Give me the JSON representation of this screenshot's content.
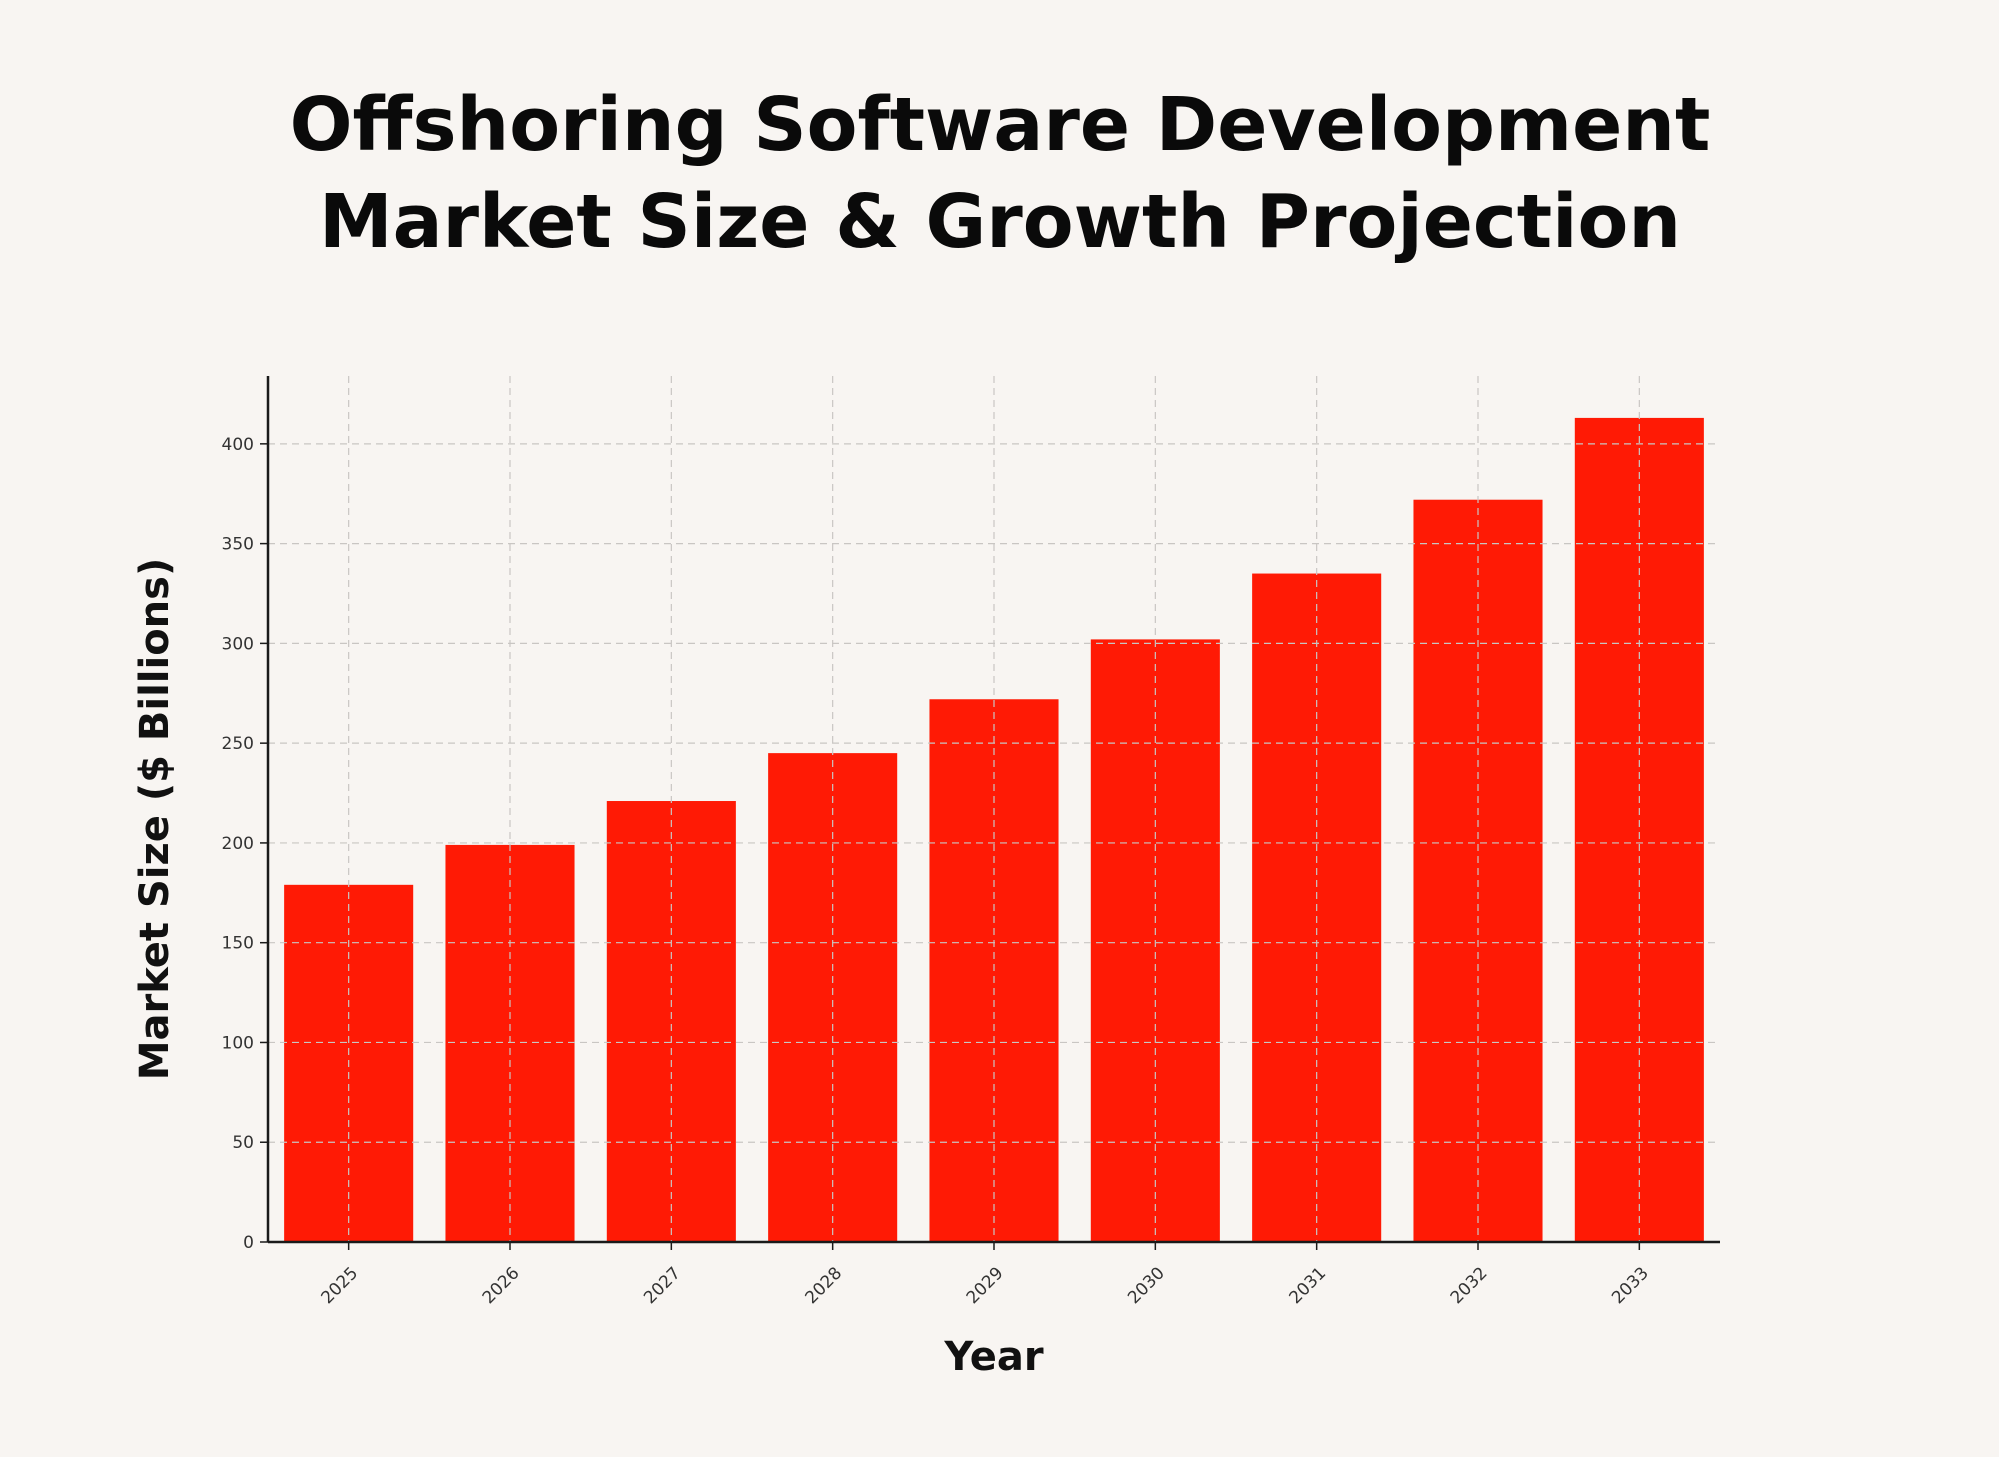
{
  "chart_data": {
    "type": "bar",
    "title_lines": [
      "Offshoring Software Development",
      "Market Size & Growth Projection"
    ],
    "xlabel": "Year",
    "ylabel": "Market Size ($ Billions)",
    "categories": [
      "2025",
      "2026",
      "2027",
      "2028",
      "2029",
      "2030",
      "2031",
      "2032",
      "2033"
    ],
    "values": [
      179,
      199,
      221,
      245,
      272,
      302,
      335,
      372,
      413
    ],
    "yticks": [
      0,
      50,
      100,
      150,
      200,
      250,
      300,
      350,
      400
    ],
    "ylim": [
      0,
      434
    ],
    "grid": true,
    "bar_color": "#ff1a05",
    "background": "#f8f5f2"
  }
}
